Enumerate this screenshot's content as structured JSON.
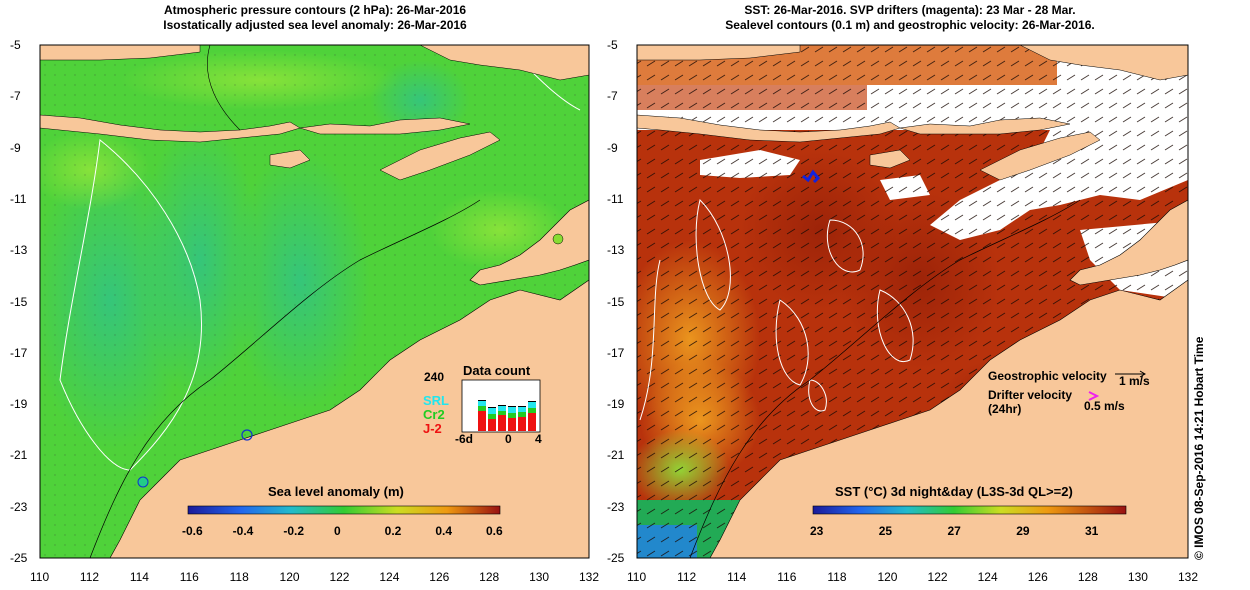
{
  "left_panel": {
    "title_line1": "Atmospheric pressure contours (2 hPa): 26-Mar-2016",
    "title_line2": "Isostatically adjusted sea level anomaly: 26-Mar-2016",
    "colorbar_label": "Sea level anomaly (m)",
    "colorbar_ticks": [
      "-0.6",
      "-0.4",
      "-0.2",
      "0",
      "0.2",
      "0.4",
      "0.6"
    ],
    "inset": {
      "title": "Data count",
      "ymax": "240",
      "xlabels": [
        "-6d",
        "0",
        "4"
      ],
      "legend": [
        {
          "label": "SRL",
          "color": "#22e6ee"
        },
        {
          "label": "Cr2",
          "color": "#22cc22"
        },
        {
          "label": "J-2",
          "color": "#ee1111"
        }
      ]
    }
  },
  "right_panel": {
    "title_line1": "SST: 26-Mar-2016. SVP drifters (magenta): 23 Mar - 28 Mar.",
    "title_line2": "Sealevel contours (0.1 m) and geostrophic velocity: 26-Mar-2016.",
    "colorbar_label": "SST (°C) 3d night&day (L3S-3d QL>=2)",
    "colorbar_ticks": [
      "23",
      "25",
      "27",
      "29",
      "31"
    ],
    "geostrophic_label": "Geostrophic velocity",
    "geostrophic_scale": "1 m/s",
    "drifter_label_line1": "Drifter velocity",
    "drifter_label_line2": "(24hr)",
    "drifter_scale": "0.5 m/s"
  },
  "axes": {
    "x_ticks": [
      "110",
      "112",
      "114",
      "116",
      "118",
      "120",
      "122",
      "124",
      "126",
      "128",
      "130",
      "132"
    ],
    "y_ticks": [
      "-5",
      "-7",
      "-9",
      "-11",
      "-13",
      "-15",
      "-17",
      "-19",
      "-21",
      "-23",
      "-25"
    ]
  },
  "credit": "© IMOS 08-Sep-2016 14:21 Hobart Time",
  "colors": {
    "land": "#f8c79a",
    "ocean_green": "#4fd23a",
    "sst_red": "#b8320c",
    "sst_orange": "#d8641a"
  }
}
